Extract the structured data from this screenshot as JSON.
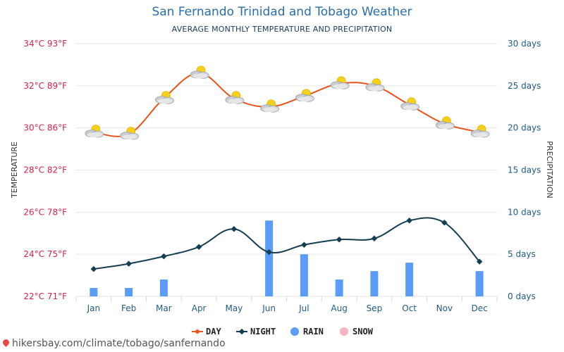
{
  "header": {
    "title": "San Fernando Trinidad and Tobago Weather",
    "subtitle": "AVERAGE MONTHLY TEMPERATURE AND PRECIPITATION"
  },
  "footer": {
    "link_text": "hikersbay.com/climate/tobago/sanfernando"
  },
  "colors": {
    "day": "#e8541c",
    "night": "#163e52",
    "rain": "#5a9cf8",
    "snow": "#f7b6c2",
    "left_ticks": "#d6234a",
    "right_ticks": "#1f5a84"
  },
  "chart_data": {
    "type": "line",
    "categories": [
      "Jan",
      "Feb",
      "Mar",
      "Apr",
      "May",
      "Jun",
      "Jul",
      "Aug",
      "Sep",
      "Oct",
      "Nov",
      "Dec"
    ],
    "ylabel": "TEMPERATURE",
    "y2label": "PRECIPITATION",
    "ylim": [
      22,
      34
    ],
    "y2lim": [
      0,
      30
    ],
    "y_ticks": [
      {
        "value": 22,
        "label": "22°C 71°F"
      },
      {
        "value": 24,
        "label": "24°C 75°F"
      },
      {
        "value": 26,
        "label": "26°C 78°F"
      },
      {
        "value": 28,
        "label": "28°C 82°F"
      },
      {
        "value": 30,
        "label": "30°C 86°F"
      },
      {
        "value": 32,
        "label": "32°C 89°F"
      },
      {
        "value": 34,
        "label": "34°C 93°F"
      }
    ],
    "y2_ticks": [
      {
        "value": 0,
        "label": "0 days"
      },
      {
        "value": 5,
        "label": "5 days"
      },
      {
        "value": 10,
        "label": "10 days"
      },
      {
        "value": 15,
        "label": "15 days"
      },
      {
        "value": 20,
        "label": "20 days"
      },
      {
        "value": 25,
        "label": "25 days"
      },
      {
        "value": 30,
        "label": "30 days"
      }
    ],
    "series": [
      {
        "name": "DAY",
        "axis": "left",
        "values": [
          29.8,
          29.7,
          31.4,
          32.6,
          31.4,
          31.0,
          31.5,
          32.1,
          32.0,
          31.1,
          30.2,
          29.8
        ]
      },
      {
        "name": "NIGHT",
        "axis": "left",
        "values": [
          23.3,
          23.55,
          23.9,
          24.35,
          25.2,
          24.1,
          24.45,
          24.7,
          24.75,
          25.6,
          25.5,
          23.65
        ]
      },
      {
        "name": "RAIN",
        "axis": "right",
        "type": "bar",
        "values": [
          1,
          1,
          2,
          0,
          0,
          9,
          5,
          2,
          3,
          4,
          0,
          3
        ]
      },
      {
        "name": "SNOW",
        "axis": "right",
        "type": "bar",
        "values": [
          0,
          0,
          0,
          0,
          0,
          0,
          0,
          0,
          0,
          0,
          0,
          0
        ]
      }
    ],
    "day_icons": [
      "partly-cloudy-icon",
      "partly-cloudy-icon",
      "partly-cloudy-icon",
      "partly-cloudy-icon",
      "partly-cloudy-icon",
      "partly-cloudy-icon",
      "partly-cloudy-icon",
      "partly-cloudy-icon",
      "partly-cloudy-icon",
      "partly-cloudy-icon",
      "partly-cloudy-icon",
      "partly-cloudy-icon"
    ],
    "legend": {
      "placement": "bottom",
      "entries": [
        "DAY",
        "NIGHT",
        "RAIN",
        "SNOW"
      ]
    },
    "grid": true
  }
}
